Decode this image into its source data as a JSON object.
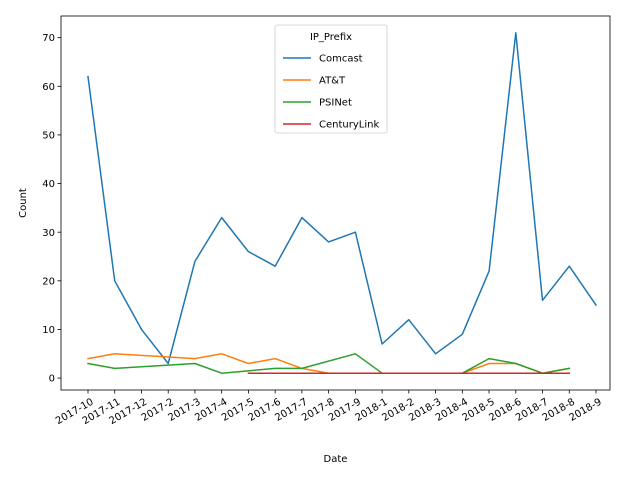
{
  "chart_data": {
    "type": "line",
    "title": "",
    "xlabel": "Date",
    "ylabel": "Count",
    "ylim": [
      -2.45,
      74.45
    ],
    "yticks": [
      0,
      10,
      20,
      30,
      40,
      50,
      60,
      70
    ],
    "grid": false,
    "legend": {
      "title": "IP_Prefix",
      "placement": "upper-center"
    },
    "categories": [
      "2017-10",
      "2017-11",
      "2017-12",
      "2017-2",
      "2017-3",
      "2017-4",
      "2017-5",
      "2017-6",
      "2017-7",
      "2017-8",
      "2017-9",
      "2018-1",
      "2018-2",
      "2018-3",
      "2018-4",
      "2018-5",
      "2018-6",
      "2018-7",
      "2018-8",
      "2018-9"
    ],
    "series": [
      {
        "name": "Comcast",
        "color": "#1f77b4",
        "values": [
          62,
          20,
          10,
          3,
          24,
          33,
          26,
          23,
          33,
          28,
          30,
          7,
          12,
          5,
          9,
          22,
          71,
          16,
          23,
          15
        ]
      },
      {
        "name": "AT&T",
        "color": "#ff7f0e",
        "values": [
          4,
          5,
          null,
          null,
          4,
          5,
          3,
          4,
          2,
          1,
          1,
          1,
          1,
          1,
          1,
          3,
          3,
          1,
          2,
          null
        ]
      },
      {
        "name": "PSINet",
        "color": "#2ca02c",
        "values": [
          3,
          2,
          null,
          null,
          3,
          1,
          null,
          2,
          2,
          null,
          5,
          1,
          1,
          1,
          1,
          4,
          3,
          1,
          2,
          null
        ]
      },
      {
        "name": "CenturyLink",
        "color": "#d62728",
        "values": [
          null,
          null,
          null,
          null,
          null,
          null,
          1,
          1,
          1,
          1,
          1,
          1,
          1,
          1,
          1,
          1,
          1,
          1,
          1,
          null
        ]
      }
    ]
  }
}
